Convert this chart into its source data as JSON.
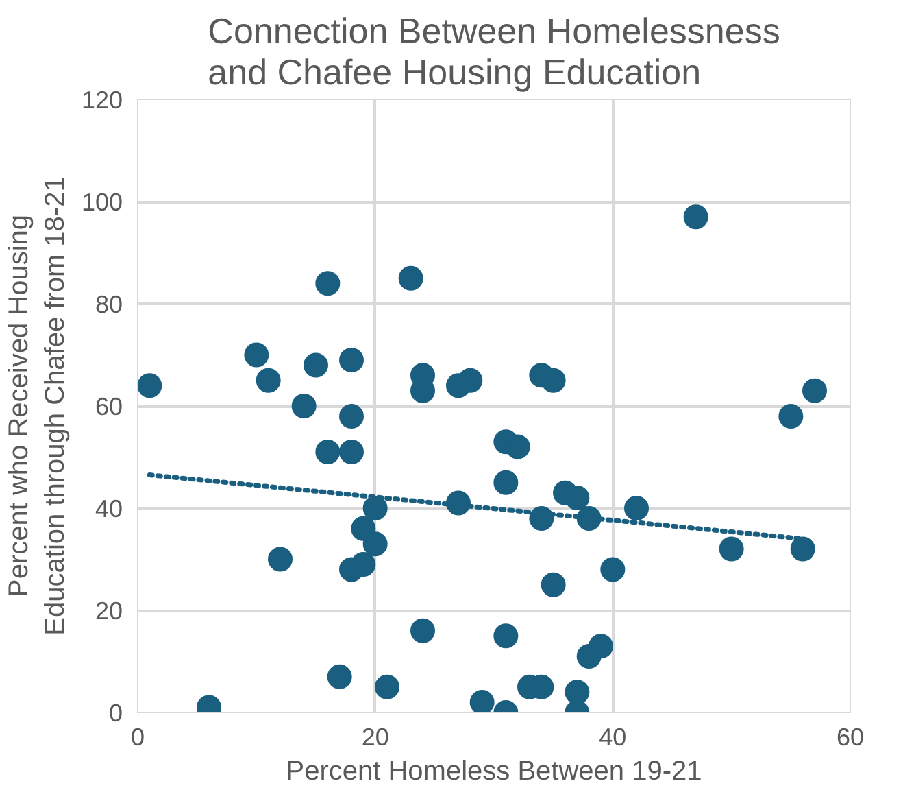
{
  "chart_data": {
    "type": "scatter",
    "title": "Connection Between Homelessness and Chafee Housing Education",
    "xlabel": "Percent Homeless Between 19-21",
    "ylabel": "Percent who Received Housing Education through Chafee from 18-21",
    "xlim": [
      0,
      60
    ],
    "xticks": [
      0,
      20,
      40,
      60
    ],
    "ylim": [
      0,
      120
    ],
    "yticks": [
      0,
      20,
      40,
      60,
      80,
      100,
      120
    ],
    "grid": true,
    "marker": "circle",
    "series": [
      {
        "color": "#1a5e80",
        "x": [
          1,
          6,
          10,
          11,
          12,
          14,
          15,
          16,
          16,
          17,
          18,
          18,
          18,
          18,
          19,
          19,
          20,
          20,
          21,
          23,
          24,
          24,
          24,
          27,
          27,
          28,
          29,
          31,
          31,
          31,
          31,
          32,
          33,
          34,
          34,
          34,
          35,
          35,
          36,
          37,
          37,
          37,
          38,
          38,
          39,
          40,
          42,
          47,
          50,
          55,
          56,
          57
        ],
        "values": [
          64,
          1,
          70,
          65,
          30,
          60,
          68,
          84,
          51,
          7,
          69,
          58,
          51,
          28,
          36,
          29,
          33,
          40,
          5,
          85,
          66,
          63,
          16,
          64,
          41,
          65,
          2,
          53,
          45,
          15,
          0,
          52,
          5,
          66,
          38,
          5,
          65,
          25,
          43,
          42,
          4,
          0,
          11,
          38,
          13,
          28,
          40,
          97,
          32,
          58,
          32,
          63
        ]
      },
      {
        "type": "line",
        "line_style": "dotted",
        "marker": "none",
        "color": "#1a5e80",
        "x": [
          1,
          56
        ],
        "values": [
          46.5,
          34
        ]
      }
    ]
  }
}
